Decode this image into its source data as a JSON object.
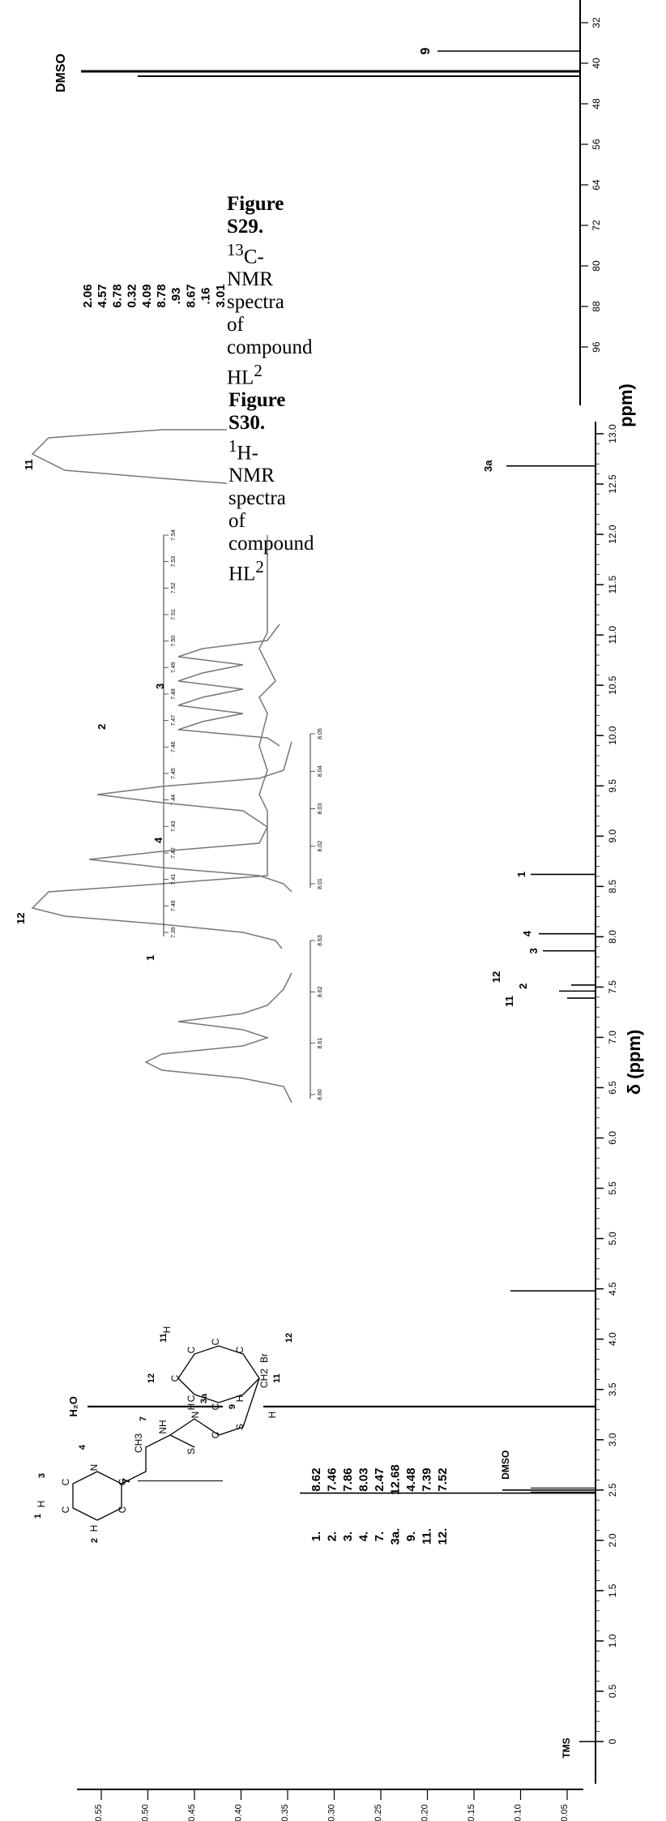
{
  "captions": {
    "c13": {
      "figure": "Figure S29.",
      "superscript": "13",
      "text": "C-NMR spectra of compound HL",
      "compound_sup": "2"
    },
    "h1": {
      "figure": "Figure S30.",
      "superscript": "1",
      "text": "H-NMR spectra of compound HL",
      "compound_sup": "2"
    }
  },
  "top_spectrum": {
    "solvent_label": "DMSO",
    "peak_label_9": "9",
    "shift_labels": [
      "2.06",
      "4.57",
      "6.78",
      "0.32",
      "4.09",
      "8.78",
      ".93",
      "8.67",
      ".16",
      "3.01"
    ],
    "ppm_ticks": [
      "32",
      "40",
      "48",
      "56",
      "64",
      "72",
      "80",
      "88",
      "96"
    ],
    "axis_fragment": "ppm)"
  },
  "chart_data": {
    "type": "line",
    "title": "",
    "xlabel": "δ (ppm)",
    "ylabel": "",
    "x_ticks": [
      "13.0",
      "12.5",
      "12.0",
      "11.5",
      "11.0",
      "10.5",
      "10.0",
      "9.5",
      "9.0",
      "8.5",
      "8.0",
      "7.5",
      "7.0",
      "6.5",
      "6.0",
      "5.5",
      "5.0",
      "4.5",
      "4.0",
      "3.5",
      "3.0",
      "2.5",
      "2.0",
      "1.5",
      "1.0",
      "0.5",
      "0"
    ],
    "y_ticks": [
      "0.55",
      "0.50",
      "0.45",
      "0.40",
      "0.35",
      "0.30",
      "0.25",
      "0.20",
      "0.15",
      "0.10",
      "0.05"
    ],
    "peaks": [
      {
        "label": "3a",
        "ppm": 12.68
      },
      {
        "label": "1",
        "ppm": 8.62
      },
      {
        "label": "4",
        "ppm": 8.03
      },
      {
        "label": "3",
        "ppm": 7.86
      },
      {
        "label": "12",
        "ppm": 7.52
      },
      {
        "label": "2",
        "ppm": 7.46
      },
      {
        "label": "11",
        "ppm": 7.39
      },
      {
        "label": "9",
        "ppm": 4.48
      },
      {
        "label": "H2O",
        "ppm": 3.33
      },
      {
        "label": "DMSO",
        "ppm": 2.5
      },
      {
        "label": "7",
        "ppm": 2.47
      },
      {
        "label": "TMS",
        "ppm": 0.0
      }
    ]
  },
  "labels": {
    "h2o": "H₂O",
    "dmso": "DMSO",
    "tms": "TMS",
    "peak_7": "7",
    "peak_12": "12",
    "peak_11": "11",
    "peak_2": "2",
    "peak_4": "4",
    "peak_3": "3",
    "peak_1": "1",
    "peak_3a": "3a",
    "axis_title": "δ (ppm)"
  },
  "assignments": [
    {
      "num": "1.",
      "value": "8.62"
    },
    {
      "num": "2.",
      "value": "7.46"
    },
    {
      "num": "3.",
      "value": "7.86"
    },
    {
      "num": "4.",
      "value": "8.03"
    },
    {
      "num": "7.",
      "value": "2.47"
    },
    {
      "num": "3a.",
      "value": "12.68"
    },
    {
      "num": "9.",
      "value": "4.48"
    },
    {
      "num": "11.",
      "value": "7.39"
    },
    {
      "num": "12.",
      "value": "7.52"
    }
  ],
  "insets": {
    "a_ticks": [
      "7.39",
      "7.40",
      "7.41",
      "7.42",
      "7.43",
      "7.44",
      "7.45",
      "7.46",
      "7.47",
      "7.48",
      "7.49",
      "7.50",
      "7.51",
      "7.52",
      "7.53",
      "7.54"
    ],
    "b_ticks": [
      "8.01",
      "8.02",
      "8.03",
      "8.04",
      "8.05"
    ],
    "c_ticks": [
      "8.60",
      "8.61",
      "8.62",
      "8.63"
    ]
  },
  "structure": {
    "atoms": [
      "H",
      "C",
      "C",
      "N",
      "C",
      "C",
      "H",
      "CH3",
      "NH",
      "N",
      "C",
      "S",
      "S",
      "CH2",
      "C",
      "C",
      "C",
      "C",
      "C",
      "C",
      "Br",
      "H",
      "H",
      "H",
      "H"
    ],
    "numbers": [
      "1",
      "2",
      "3",
      "4",
      "7",
      "3a",
      "9",
      "11",
      "12",
      "11",
      "12"
    ]
  }
}
